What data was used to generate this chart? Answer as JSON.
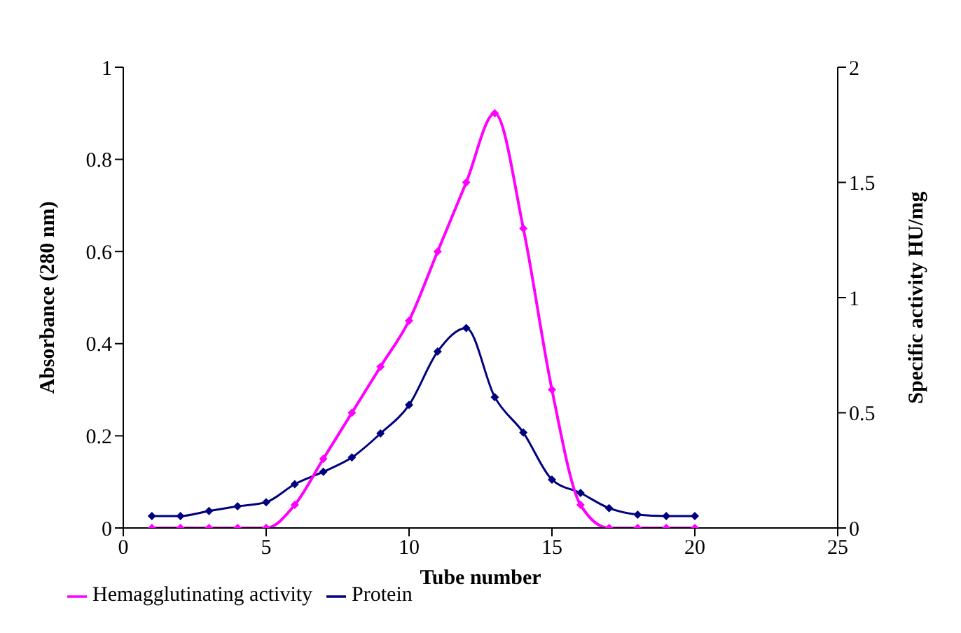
{
  "chart_data": {
    "type": "line",
    "xlabel": "Tube number",
    "ylabel": "Absorbance (280 nm)",
    "y2label": "Specific activity HU/mg",
    "x": [
      1,
      2,
      3,
      4,
      5,
      6,
      7,
      8,
      9,
      10,
      11,
      12,
      13,
      14,
      15,
      16,
      17,
      18,
      19,
      20
    ],
    "series": [
      {
        "name": "Protein",
        "color": "#000080",
        "values": [
          0.026,
          0.026,
          0.037,
          0.047,
          0.056,
          0.095,
          0.122,
          0.153,
          0.205,
          0.267,
          0.383,
          0.434,
          0.284,
          0.207,
          0.105,
          0.076,
          0.043,
          0.029,
          0.026,
          0.026
        ]
      },
      {
        "name": "Hemagglutinating activity",
        "color": "#ff00ff",
        "axis": "y2",
        "values": [
          0,
          0,
          0,
          0,
          0,
          0.1,
          0.3,
          0.5,
          0.7,
          0.9,
          1.2,
          1.5,
          1.8,
          1.3,
          0.6,
          0.1,
          0,
          0,
          0,
          0
        ]
      }
    ],
    "xlim": [
      0,
      25
    ],
    "xticks": [
      0,
      5,
      10,
      15,
      20,
      25
    ],
    "ylim": [
      0,
      1
    ],
    "yticks": [
      0,
      0.2,
      0.4,
      0.6,
      0.8,
      1
    ],
    "y2lim": [
      0,
      2
    ],
    "y2ticks": [
      0,
      0.5,
      1,
      1.5,
      2
    ],
    "grid": false,
    "legend": "bottom left",
    "marker": "diamond",
    "line_style": "solid"
  }
}
